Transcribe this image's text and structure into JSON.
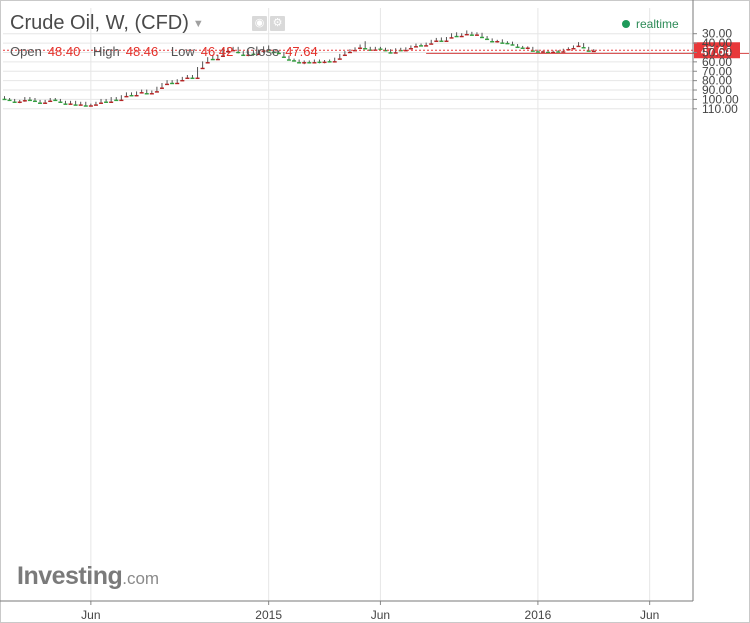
{
  "header": {
    "title": "Crude Oil, W, (CFD)",
    "ohlc": [
      {
        "label": "Open",
        "value": "48.40"
      },
      {
        "label": "High",
        "value": "48.46"
      },
      {
        "label": "Low",
        "value": "46.42"
      },
      {
        "label": "Close",
        "value": "47.64"
      }
    ],
    "realtime_label": "realtime"
  },
  "logo": {
    "main": "Investing",
    "domain": ".com"
  },
  "colors": {
    "up": "#2e9e3b",
    "down": "#b52020",
    "grid": "#e6e6e6",
    "price_line": "#e8383a",
    "resistance": "#d44040",
    "realtime_dot": "#1e9a5a"
  },
  "icons": [
    "chevron-down-icon",
    "eye-icon",
    "gear-icon",
    "realtime-dot-icon"
  ],
  "chart_data": {
    "type": "candlestick",
    "title": "Crude Oil, W, (CFD)",
    "interval": "W",
    "xlabel": "",
    "ylabel": "",
    "ylim": [
      23,
      114
    ],
    "y_ticks": [
      30,
      40,
      50,
      60,
      70,
      80,
      90,
      100,
      110
    ],
    "y_tick_labels": [
      "30.00",
      "40.00",
      "50.00",
      "60.00",
      "70.00",
      "80.00",
      "90.00",
      "100.00",
      "110.00"
    ],
    "x_ticks": [
      {
        "label": "Jun",
        "bar": 17
      },
      {
        "label": "2015",
        "bar": 52
      },
      {
        "label": "Jun",
        "bar": 74
      },
      {
        "label": "2016",
        "bar": 105
      },
      {
        "label": "Jun",
        "bar": 127
      }
    ],
    "grid": true,
    "last_price": {
      "value": 47.64,
      "label": "47.64"
    },
    "resistance_level": 51.0,
    "candles": [
      [
        97.5,
        100.5,
        96.5,
        99.5
      ],
      [
        99.5,
        101.5,
        98.5,
        100.5
      ],
      [
        100.5,
        103.5,
        99.5,
        102.5
      ],
      [
        102.5,
        104.0,
        100.5,
        101.0
      ],
      [
        101.0,
        102.5,
        97.5,
        98.5
      ],
      [
        98.5,
        101.5,
        97.5,
        100.5
      ],
      [
        100.5,
        102.5,
        98.5,
        101.5
      ],
      [
        101.5,
        104.5,
        100.5,
        103.5
      ],
      [
        103.5,
        104.5,
        100.5,
        101.5
      ],
      [
        101.5,
        102.5,
        98.5,
        99.5
      ],
      [
        99.5,
        101.5,
        98.5,
        100.5
      ],
      [
        100.5,
        103.5,
        99.5,
        102.5
      ],
      [
        102.5,
        105.5,
        101.5,
        104.5
      ],
      [
        104.5,
        105.5,
        101.5,
        102.5
      ],
      [
        102.5,
        106.5,
        101.5,
        105.5
      ],
      [
        105.5,
        106.5,
        102.5,
        103.5
      ],
      [
        103.5,
        107.5,
        102.5,
        106.5
      ],
      [
        106.5,
        107.5,
        104.5,
        105.5
      ],
      [
        105.5,
        106.5,
        102.5,
        103.5
      ],
      [
        103.5,
        104.5,
        99.5,
        100.5
      ],
      [
        100.5,
        103.5,
        99.5,
        102.5
      ],
      [
        102.5,
        103.5,
        97.5,
        98.5
      ],
      [
        98.5,
        101.5,
        97.5,
        100.5
      ],
      [
        100.5,
        101.5,
        95.5,
        96.5
      ],
      [
        96.5,
        97.5,
        92.5,
        93.5
      ],
      [
        93.5,
        96.5,
        92.5,
        95.5
      ],
      [
        95.5,
        96.5,
        91.5,
        92.5
      ],
      [
        92.5,
        93.5,
        89.5,
        90.5
      ],
      [
        90.5,
        94.5,
        89.5,
        93.5
      ],
      [
        93.5,
        94.5,
        90.5,
        91.5
      ],
      [
        91.5,
        92.5,
        86.5,
        87.5
      ],
      [
        87.5,
        88.5,
        82.5,
        83.5
      ],
      [
        83.5,
        84.5,
        79.5,
        80.5
      ],
      [
        80.5,
        83.5,
        79.5,
        82.5
      ],
      [
        82.5,
        83.5,
        78.5,
        79.5
      ],
      [
        79.5,
        80.5,
        76.0,
        77.0
      ],
      [
        77.0,
        78.0,
        74.0,
        75.0
      ],
      [
        75.0,
        78.0,
        74.0,
        77.0
      ],
      [
        77.0,
        78.0,
        65.5,
        66.5
      ],
      [
        66.5,
        67.5,
        59.5,
        60.5
      ],
      [
        60.5,
        61.5,
        55.0,
        56.0
      ],
      [
        56.0,
        58.0,
        53.0,
        57.0
      ],
      [
        57.0,
        58.0,
        52.5,
        53.5
      ],
      [
        53.5,
        54.5,
        45.5,
        48.5
      ],
      [
        48.5,
        50.5,
        44.5,
        47.5
      ],
      [
        47.5,
        48.5,
        44.0,
        45.0
      ],
      [
        45.0,
        51.0,
        44.0,
        49.5
      ],
      [
        49.5,
        53.5,
        48.5,
        52.5
      ],
      [
        52.5,
        54.0,
        48.5,
        49.5
      ],
      [
        49.5,
        53.5,
        47.5,
        51.5
      ],
      [
        51.5,
        52.5,
        47.0,
        48.0
      ],
      [
        48.0,
        50.5,
        43.5,
        44.5
      ],
      [
        44.5,
        48.5,
        42.5,
        47.5
      ],
      [
        47.5,
        50.5,
        46.5,
        49.5
      ],
      [
        49.5,
        51.5,
        48.0,
        50.5
      ],
      [
        50.5,
        55.5,
        49.5,
        54.5
      ],
      [
        54.5,
        58.5,
        53.5,
        57.5
      ],
      [
        57.5,
        59.5,
        56.5,
        58.5
      ],
      [
        58.5,
        61.5,
        57.5,
        60.5
      ],
      [
        60.5,
        62.5,
        58.5,
        59.5
      ],
      [
        59.5,
        61.5,
        58.5,
        60.5
      ],
      [
        60.5,
        61.0,
        57.5,
        58.5
      ],
      [
        58.5,
        61.5,
        57.5,
        60.0
      ],
      [
        60.0,
        61.5,
        58.0,
        59.0
      ],
      [
        59.0,
        60.5,
        57.5,
        59.5
      ],
      [
        59.5,
        60.5,
        55.5,
        56.5
      ],
      [
        56.5,
        57.5,
        51.5,
        52.5
      ],
      [
        52.5,
        53.5,
        48.5,
        49.5
      ],
      [
        49.5,
        50.5,
        46.5,
        47.5
      ],
      [
        47.5,
        48.5,
        44.5,
        45.0
      ],
      [
        45.0,
        46.0,
        41.5,
        42.5
      ],
      [
        42.5,
        46.5,
        38.0,
        45.5
      ],
      [
        45.5,
        48.0,
        44.0,
        47.0
      ],
      [
        47.0,
        48.0,
        44.0,
        45.0
      ],
      [
        45.0,
        47.0,
        44.0,
        46.0
      ],
      [
        46.0,
        48.5,
        45.0,
        47.5
      ],
      [
        47.5,
        51.0,
        46.5,
        50.0
      ],
      [
        50.0,
        50.5,
        45.5,
        46.5
      ],
      [
        46.5,
        48.5,
        45.0,
        47.5
      ],
      [
        47.5,
        48.5,
        44.5,
        45.5
      ],
      [
        45.5,
        46.5,
        42.5,
        43.5
      ],
      [
        43.5,
        44.5,
        40.5,
        41.5
      ],
      [
        41.5,
        43.5,
        40.5,
        42.5
      ],
      [
        42.5,
        43.0,
        39.5,
        40.5
      ],
      [
        40.5,
        41.0,
        36.5,
        37.5
      ],
      [
        37.5,
        38.5,
        34.5,
        35.5
      ],
      [
        35.5,
        38.5,
        34.0,
        37.5
      ],
      [
        37.5,
        38.0,
        33.5,
        34.0
      ],
      [
        34.0,
        34.5,
        29.5,
        30.5
      ],
      [
        30.5,
        33.5,
        28.5,
        32.5
      ],
      [
        32.5,
        33.5,
        29.5,
        30.5
      ],
      [
        30.5,
        31.5,
        26.5,
        29.0
      ],
      [
        29.0,
        31.5,
        28.0,
        31.0
      ],
      [
        31.0,
        32.0,
        28.5,
        29.5
      ],
      [
        29.5,
        34.5,
        29.0,
        33.5
      ],
      [
        33.5,
        36.5,
        32.5,
        35.5
      ],
      [
        35.5,
        38.5,
        35.0,
        38.0
      ],
      [
        38.0,
        39.5,
        36.5,
        37.0
      ],
      [
        37.0,
        40.5,
        36.0,
        39.5
      ],
      [
        39.5,
        41.0,
        38.0,
        40.0
      ],
      [
        40.0,
        42.0,
        38.5,
        41.5
      ],
      [
        41.5,
        44.5,
        41.0,
        44.0
      ],
      [
        44.0,
        45.5,
        43.0,
        45.0
      ],
      [
        45.0,
        46.5,
        43.5,
        44.5
      ],
      [
        44.5,
        48.5,
        44.0,
        48.0
      ],
      [
        48.0,
        49.5,
        47.0,
        49.0
      ],
      [
        49.0,
        50.5,
        48.0,
        48.5
      ],
      [
        48.5,
        51.0,
        47.5,
        49.5
      ],
      [
        49.5,
        50.5,
        48.0,
        48.5
      ],
      [
        48.5,
        50.0,
        47.5,
        49.0
      ],
      [
        49.0,
        49.5,
        46.0,
        46.5
      ],
      [
        46.5,
        47.5,
        44.5,
        45.5
      ],
      [
        45.5,
        46.5,
        42.5,
        43.0
      ],
      [
        43.0,
        43.5,
        39.0,
        40.5
      ],
      [
        40.5,
        45.0,
        40.0,
        44.5
      ],
      [
        44.5,
        48.0,
        44.0,
        48.0
      ],
      [
        48.4,
        48.46,
        46.42,
        47.64
      ]
    ]
  }
}
